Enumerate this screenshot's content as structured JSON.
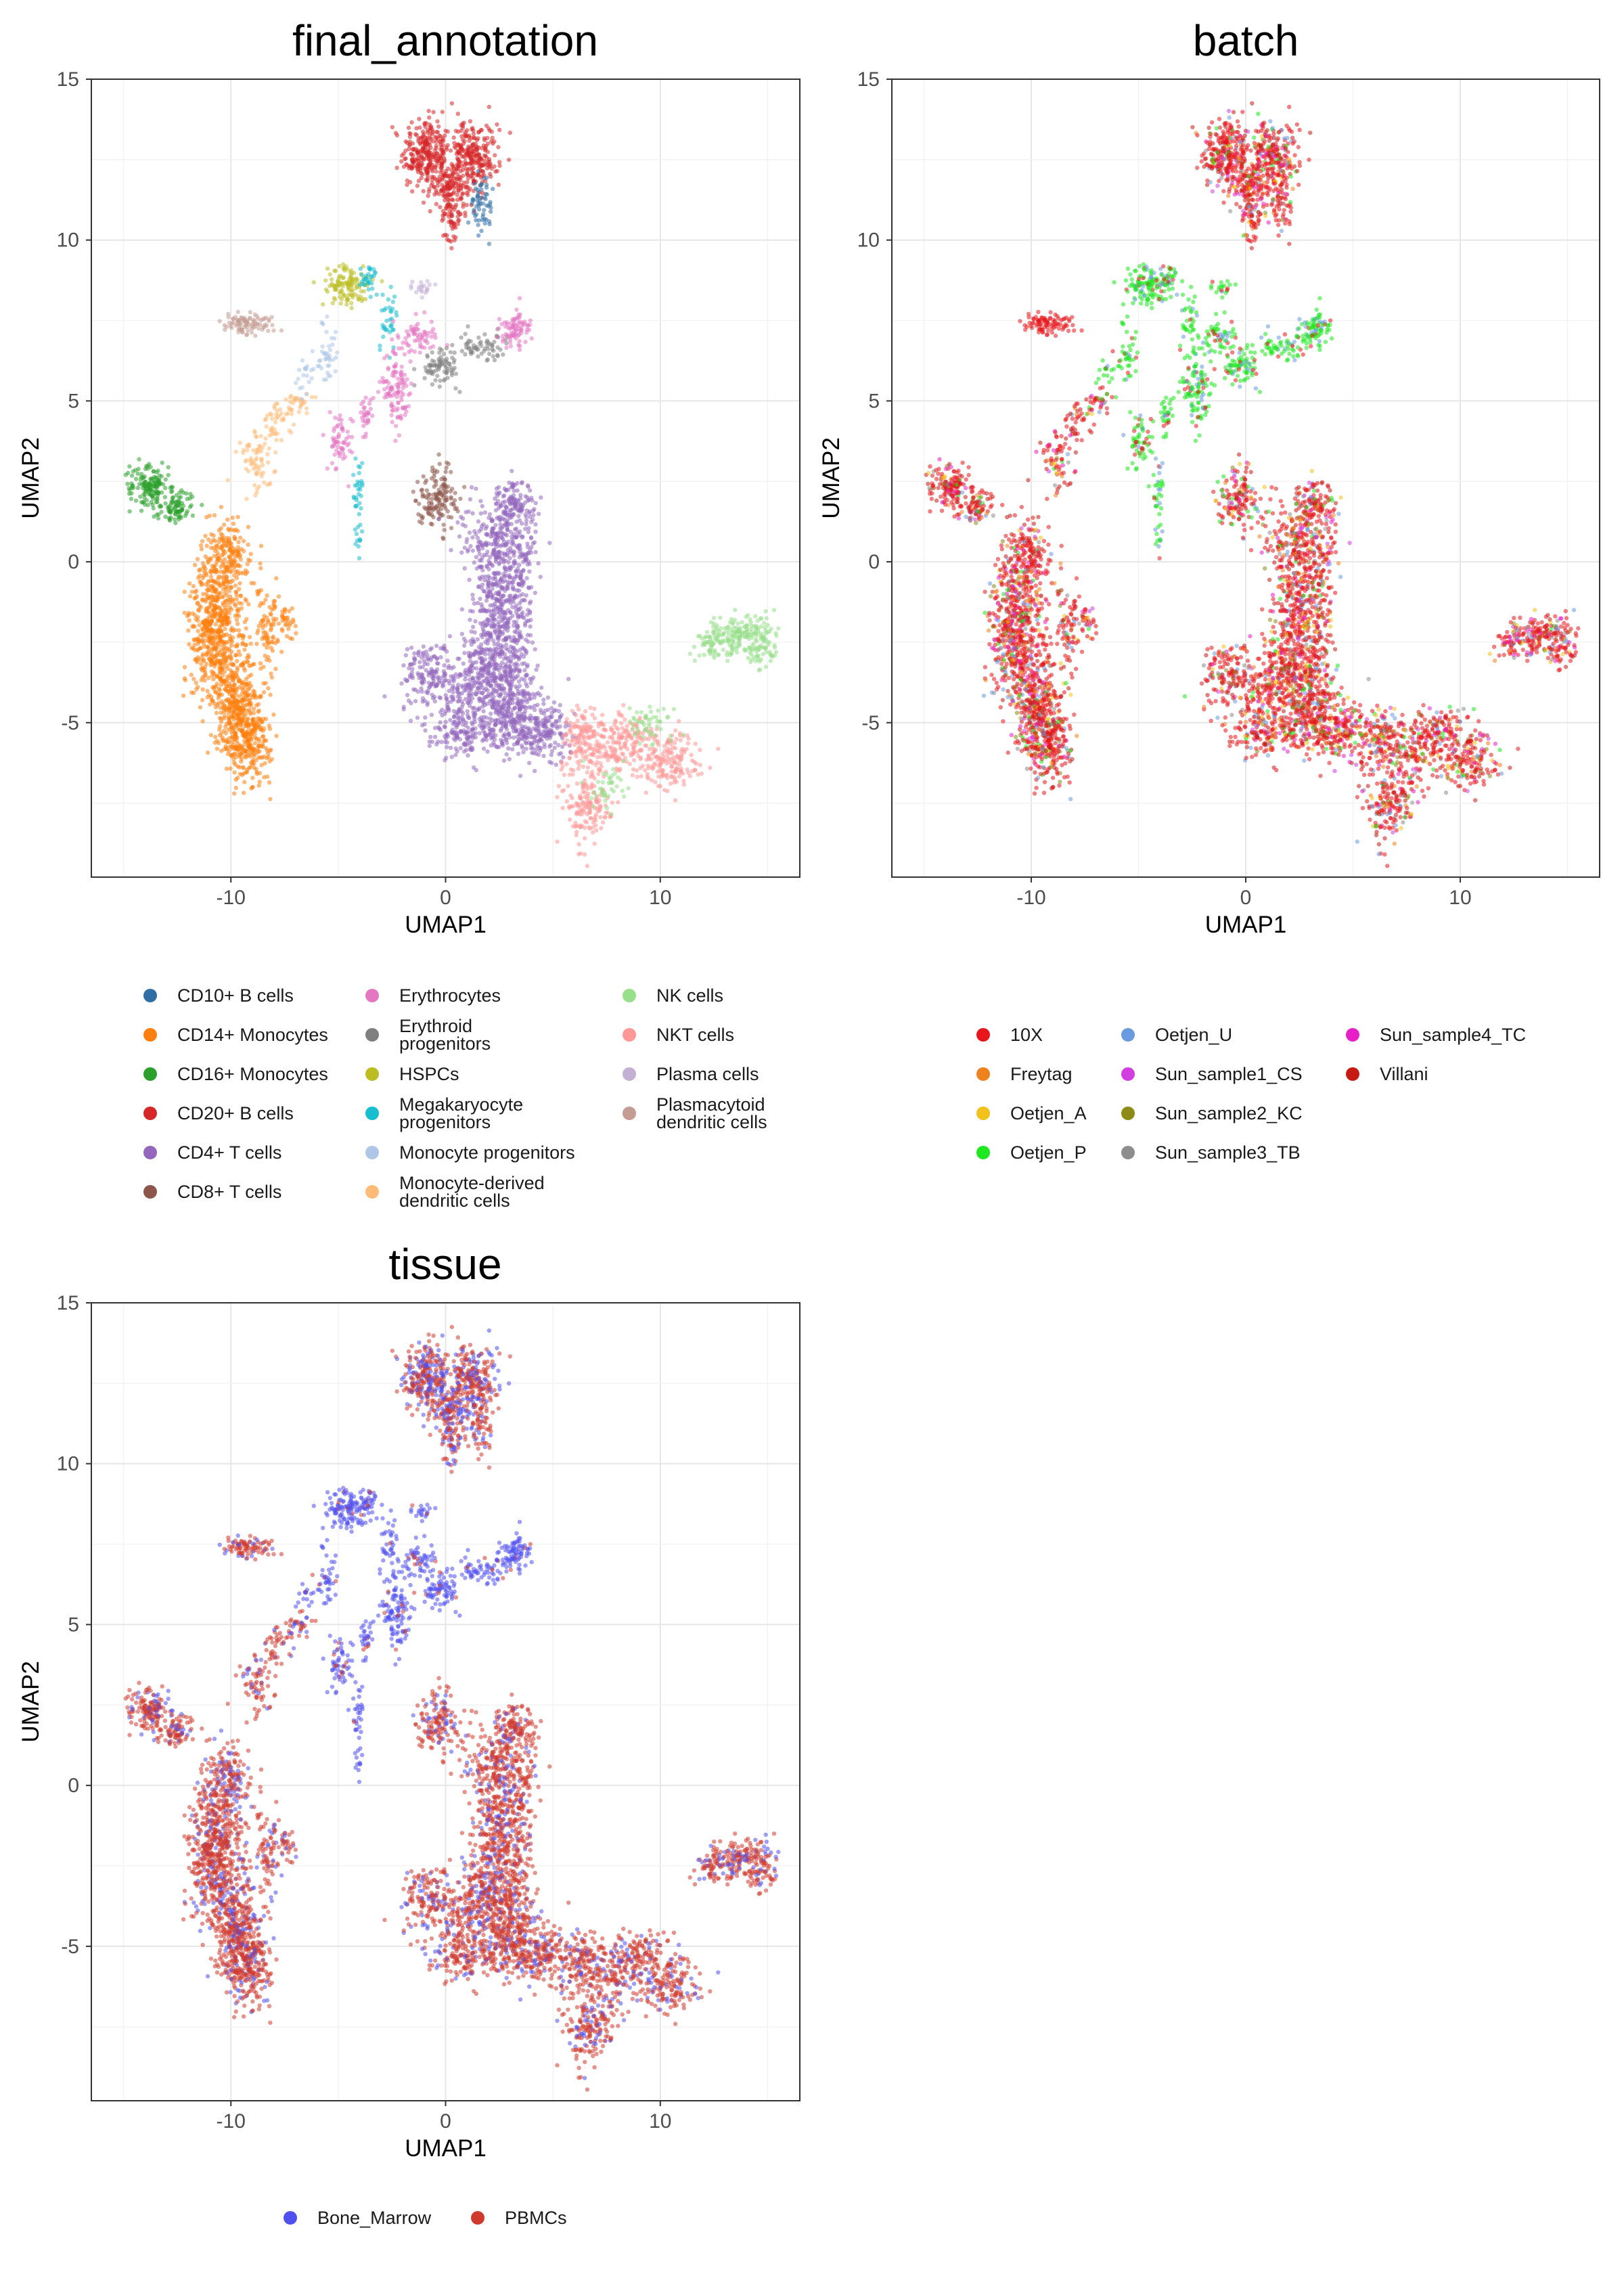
{
  "chart_data": [
    {
      "type": "scatter",
      "title": "final_annotation",
      "xlabel": "UMAP1",
      "ylabel": "UMAP2",
      "xlim": [
        -16.5,
        16.5
      ],
      "ylim": [
        -9.8,
        15.0
      ],
      "xticks": [
        -10,
        0,
        10
      ],
      "xtick_labels": [
        "-10",
        "0",
        "10"
      ],
      "yticks": [
        -5,
        0,
        5,
        10,
        15
      ],
      "ytick_labels": [
        "-5",
        "0",
        "5",
        "10",
        "15"
      ],
      "grid": true,
      "legend_position": "bottom",
      "legend_columns": 3,
      "series": [
        {
          "name": "CD10+ B cells",
          "color": "#2f6fa6",
          "points": [
            [
              1.5,
              10.8
            ],
            [
              2.0,
              11.6
            ],
            [
              1.2,
              10.2
            ],
            [
              2.3,
              11.1
            ]
          ]
        },
        {
          "name": "CD14+ Monocytes",
          "color": "#ff7f0e",
          "points": [
            [
              -12.2,
              -0.2
            ],
            [
              -11.0,
              -2.0
            ],
            [
              -10.5,
              -3.5
            ],
            [
              -9.5,
              -4.5
            ],
            [
              -9.0,
              -5.8
            ],
            [
              -9.8,
              -1.2
            ],
            [
              -8.5,
              -3.0
            ],
            [
              -7.2,
              -1.8
            ],
            [
              -10.2,
              -5.0
            ],
            [
              -11.2,
              -3.2
            ]
          ]
        },
        {
          "name": "CD16+ Monocytes",
          "color": "#2ca02c",
          "points": [
            [
              -14.0,
              2.5
            ],
            [
              -13.5,
              2.0
            ],
            [
              -12.2,
              1.5
            ],
            [
              -13.0,
              1.8
            ]
          ]
        },
        {
          "name": "CD20+ B cells",
          "color": "#d62728",
          "points": [
            [
              -1.0,
              12.8
            ],
            [
              -0.3,
              12.2
            ],
            [
              1.2,
              12.7
            ],
            [
              2.2,
              12.4
            ],
            [
              0.0,
              11.0
            ],
            [
              0.5,
              9.7
            ]
          ]
        },
        {
          "name": "CD4+ T cells",
          "color": "#9467bd",
          "points": [
            [
              2.5,
              0.5
            ],
            [
              3.0,
              -1.0
            ],
            [
              2.0,
              -3.0
            ],
            [
              1.0,
              -4.2
            ],
            [
              3.0,
              -5.0
            ],
            [
              4.5,
              -5.5
            ],
            [
              -0.5,
              -3.5
            ],
            [
              5.5,
              -5.8
            ],
            [
              3.5,
              1.5
            ],
            [
              2.0,
              -2.0
            ]
          ]
        },
        {
          "name": "CD8+ T cells",
          "color": "#8c564b",
          "points": [
            [
              -0.5,
              2.0
            ],
            [
              0.0,
              1.6
            ],
            [
              -0.8,
              2.4
            ]
          ]
        },
        {
          "name": "Erythrocytes",
          "color": "#e377c2",
          "points": [
            [
              -2.5,
              5.2
            ],
            [
              -2.0,
              5.6
            ],
            [
              3.5,
              7.0
            ],
            [
              2.8,
              7.2
            ],
            [
              -5.0,
              4.0
            ]
          ]
        },
        {
          "name": "Erythroid progenitors",
          "color": "#7f7f7f",
          "points": [
            [
              -1.5,
              7.0
            ],
            [
              -0.5,
              6.2
            ],
            [
              0.0,
              5.9
            ]
          ]
        },
        {
          "name": "HSPCs",
          "color": "#bcbd22",
          "points": [
            [
              -4.8,
              8.6
            ],
            [
              -4.2,
              8.9
            ],
            [
              -5.2,
              8.2
            ]
          ]
        },
        {
          "name": "Megakaryocyte progenitors",
          "color": "#17becf",
          "points": [
            [
              -3.5,
              8.8
            ],
            [
              -3.0,
              8.0
            ],
            [
              -4.0,
              2.5
            ],
            [
              -4.5,
              1.0
            ]
          ]
        },
        {
          "name": "Monocyte progenitors",
          "color": "#aec7e8",
          "points": [
            [
              -5.5,
              7.0
            ],
            [
              -6.0,
              5.5
            ],
            [
              -7.0,
              3.5
            ],
            [
              -8.0,
              1.5
            ]
          ]
        },
        {
          "name": "Monocyte-derived dendritic cells",
          "color": "#ffbb78",
          "points": [
            [
              -9.0,
              3.0
            ],
            [
              -8.5,
              4.0
            ],
            [
              -8.0,
              2.5
            ],
            [
              -7.5,
              4.5
            ]
          ]
        },
        {
          "name": "NK cells",
          "color": "#98df8a",
          "points": [
            [
              13.5,
              -2.2
            ],
            [
              14.5,
              -2.5
            ],
            [
              12.5,
              -2.8
            ],
            [
              8.0,
              -6.5
            ]
          ]
        },
        {
          "name": "NKT cells",
          "color": "#ff9896",
          "points": [
            [
              8.0,
              -5.5
            ],
            [
              10.0,
              -6.0
            ],
            [
              11.5,
              -6.5
            ],
            [
              6.5,
              -7.5
            ],
            [
              9.0,
              -5.0
            ]
          ]
        },
        {
          "name": "Plasma cells",
          "color": "#c5b0d5",
          "points": [
            [
              -1.2,
              8.6
            ],
            [
              -0.8,
              8.4
            ]
          ]
        },
        {
          "name": "Plasmacytoid dendritic cells",
          "color": "#c49c94",
          "points": [
            [
              -9.5,
              7.5
            ],
            [
              -8.5,
              7.4
            ],
            [
              -10.0,
              7.3
            ]
          ]
        }
      ]
    },
    {
      "type": "scatter",
      "title": "batch",
      "xlabel": "UMAP1",
      "ylabel": "UMAP2",
      "xlim": [
        -16.5,
        16.5
      ],
      "ylim": [
        -9.8,
        15.0
      ],
      "xticks": [
        -10,
        0,
        10
      ],
      "xtick_labels": [
        "-10",
        "0",
        "10"
      ],
      "yticks": [
        -5,
        0,
        5,
        10,
        15
      ],
      "ytick_labels": [
        "-5",
        "0",
        "5",
        "10",
        "15"
      ],
      "grid": true,
      "legend_position": "bottom",
      "legend_columns": 3,
      "series": [
        {
          "name": "10X",
          "color": "#e8151b"
        },
        {
          "name": "Freytag",
          "color": "#f0821e"
        },
        {
          "name": "Oetjen_A",
          "color": "#f2c11a"
        },
        {
          "name": "Oetjen_P",
          "color": "#1ee81e"
        },
        {
          "name": "Oetjen_U",
          "color": "#6a9ae0"
        },
        {
          "name": "Sun_sample1_CS",
          "color": "#d23ee0"
        },
        {
          "name": "Sun_sample2_KC",
          "color": "#8b8b16"
        },
        {
          "name": "Sun_sample3_TB",
          "color": "#8e8e8e"
        },
        {
          "name": "Sun_sample4_TC",
          "color": "#e81ec8"
        },
        {
          "name": "Villani",
          "color": "#c61a12"
        }
      ]
    },
    {
      "type": "scatter",
      "title": "tissue",
      "xlabel": "UMAP1",
      "ylabel": "UMAP2",
      "xlim": [
        -16.5,
        16.5
      ],
      "ylim": [
        -9.8,
        15.0
      ],
      "xticks": [
        -10,
        0,
        10
      ],
      "xtick_labels": [
        "-10",
        "0",
        "10"
      ],
      "yticks": [
        -5,
        0,
        5,
        10,
        15
      ],
      "ytick_labels": [
        "-5",
        "0",
        "5",
        "10",
        "15"
      ],
      "grid": true,
      "legend_position": "bottom",
      "legend_columns": 2,
      "series": [
        {
          "name": "Bone_Marrow",
          "color": "#5050f0"
        },
        {
          "name": "PBMCs",
          "color": "#d03a2e"
        }
      ]
    }
  ]
}
